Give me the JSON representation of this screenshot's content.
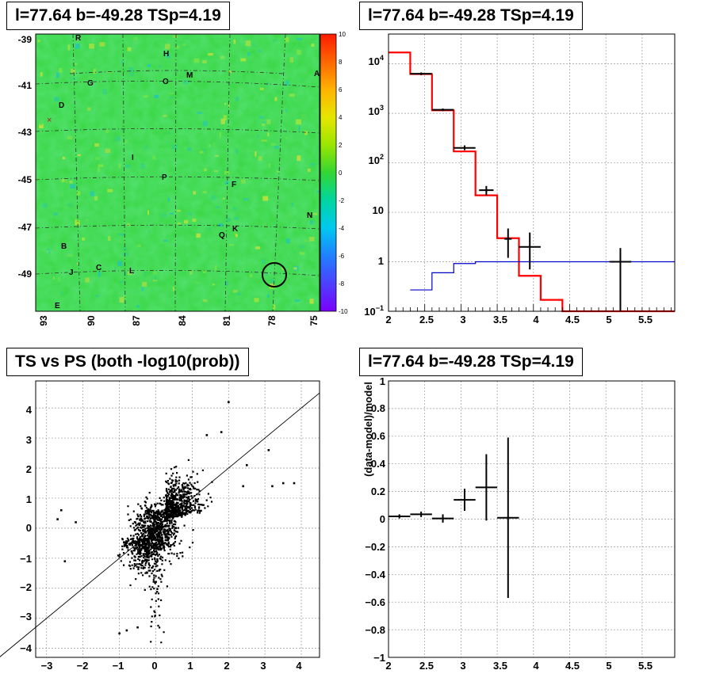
{
  "panels": {
    "skymap_title": "l=77.64 b=-49.28 TSp=4.19",
    "spectrum_title": "l=77.64 b=-49.28 TSp=4.19",
    "scatter_title": "TS vs PS (both -log10(prob))",
    "residual_title": "l=77.64 b=-49.28 TSp=4.19"
  },
  "skymap": {
    "y_ticks": [
      "-39",
      "-41",
      "-43",
      "-45",
      "-47",
      "-49"
    ],
    "x_ticks": [
      "93",
      "90",
      "87",
      "84",
      "81",
      "78",
      "75"
    ],
    "source_labels": [
      "R",
      "H",
      "O",
      "M",
      "A",
      "G",
      "D",
      "I",
      "P",
      "F",
      "N",
      "Q",
      "K",
      "B",
      "J",
      "C",
      "L",
      "E"
    ],
    "colorbar_ticks": [
      "10",
      "8",
      "6",
      "4",
      "2",
      "0",
      "-2",
      "-4",
      "-6",
      "-8",
      "-10"
    ],
    "colors": {
      "background": "#3ed84a",
      "ring": "#000000"
    }
  },
  "chart_data": [
    {
      "type": "line",
      "panel": "spectrum",
      "title": "l=77.64 b=-49.28 TSp=4.19",
      "xlim": [
        2,
        5.95
      ],
      "ylim": [
        0.1,
        40000
      ],
      "log_y": true,
      "grid": true,
      "x_ticks": [
        "2",
        "2.5",
        "3",
        "3.5",
        "4",
        "4.5",
        "5",
        "5.5"
      ],
      "y_ticks": [
        "10^-1",
        "1",
        "10",
        "10^2",
        "10^3",
        "10^4"
      ],
      "series": [
        {
          "color": "#ff0000",
          "style": "step",
          "edges": [
            2,
            2.3,
            2.6,
            2.9,
            3.2,
            3.5,
            3.8,
            4.1,
            4.4,
            5.95
          ],
          "values": [
            17000,
            6200,
            1150,
            170,
            22,
            3,
            0.52,
            0.17,
            0.1
          ]
        },
        {
          "color": "#0000cc",
          "style": "step",
          "edges": [
            2.3,
            2.6,
            2.9,
            3.2,
            5.95
          ],
          "values": [
            0.27,
            0.6,
            0.92,
            1.0
          ]
        },
        {
          "color": "#000000",
          "style": "errorbars",
          "points": [
            {
              "x": 2.45,
              "xerr": 0.15,
              "y": 6300,
              "ylo": 5900,
              "yhi": 6700
            },
            {
              "x": 2.75,
              "xerr": 0.15,
              "y": 1180,
              "ylo": 1110,
              "yhi": 1250
            },
            {
              "x": 3.05,
              "xerr": 0.15,
              "y": 200,
              "ylo": 180,
              "yhi": 225
            },
            {
              "x": 3.35,
              "xerr": 0.1,
              "y": 28,
              "ylo": 22,
              "yhi": 34
            },
            {
              "x": 3.65,
              "xerr": 0.05,
              "y": 2.9,
              "ylo": 1.2,
              "yhi": 4.7
            },
            {
              "x": 3.95,
              "xerr": 0.15,
              "y": 2,
              "ylo": 0.7,
              "yhi": 3.9
            },
            {
              "x": 5.2,
              "xerr": 0.15,
              "y": 1,
              "ylo": 0.1,
              "yhi": 1.9
            }
          ]
        }
      ]
    },
    {
      "type": "scatter",
      "panel": "ts_vs_ps",
      "title": "TS vs PS (both -log10(prob))",
      "xlim": [
        -3.3,
        4.5
      ],
      "ylim": [
        -4.3,
        4.9
      ],
      "grid": true,
      "x_ticks": [
        "−3",
        "−2",
        "−1",
        "0",
        "1",
        "2",
        "3",
        "4"
      ],
      "y_ticks": [
        "−4",
        "−3",
        "−2",
        "−1",
        "0",
        "1",
        "2",
        "3",
        "4"
      ],
      "diagonal": [
        [
          -4.5,
          -4.5
        ],
        [
          4.5,
          4.5
        ]
      ],
      "outliers": [
        [
          -1,
          -3.5
        ],
        [
          -0.8,
          -3.4
        ],
        [
          -0.5,
          -3.3
        ],
        [
          1.4,
          3.1
        ],
        [
          1.8,
          3.2
        ],
        [
          2,
          4.2
        ],
        [
          3.1,
          2.6
        ],
        [
          3.5,
          1.5
        ],
        [
          3.8,
          1.5
        ],
        [
          3.2,
          1.4
        ],
        [
          -2.6,
          0.6
        ],
        [
          -2.5,
          -1.1
        ],
        [
          -2.2,
          0.2
        ],
        [
          -2.7,
          0.3
        ],
        [
          2.5,
          2.1
        ],
        [
          2.4,
          1.4
        ]
      ]
    },
    {
      "type": "scatter",
      "panel": "residual",
      "title": "l=77.64 b=-49.28 TSp=4.19",
      "xlim": [
        2,
        5.95
      ],
      "ylim": [
        -1,
        1
      ],
      "grid": true,
      "ylabel": "(data-model)/model",
      "x_ticks": [
        "2",
        "2.5",
        "3",
        "3.5",
        "4",
        "4.5",
        "5",
        "5.5"
      ],
      "y_ticks": [
        "−1",
        "−0.8",
        "−0.6",
        "−0.4",
        "−0.2",
        "0",
        "0.2",
        "0.4",
        "0.6",
        "0.8",
        "1"
      ],
      "points": [
        {
          "x": 2.15,
          "xerr": 0.15,
          "y": 0.02,
          "yerr": 0.015
        },
        {
          "x": 2.45,
          "xerr": 0.15,
          "y": 0.035,
          "yerr": 0.02
        },
        {
          "x": 2.75,
          "xerr": 0.15,
          "y": 0.005,
          "yerr": 0.03
        },
        {
          "x": 3.05,
          "xerr": 0.15,
          "y": 0.14,
          "yerr": 0.08
        },
        {
          "x": 3.35,
          "xerr": 0.15,
          "y": 0.23,
          "yerr": 0.24
        },
        {
          "x": 3.65,
          "xerr": 0.15,
          "y": 0.01,
          "yerr": 0.58
        }
      ]
    }
  ]
}
